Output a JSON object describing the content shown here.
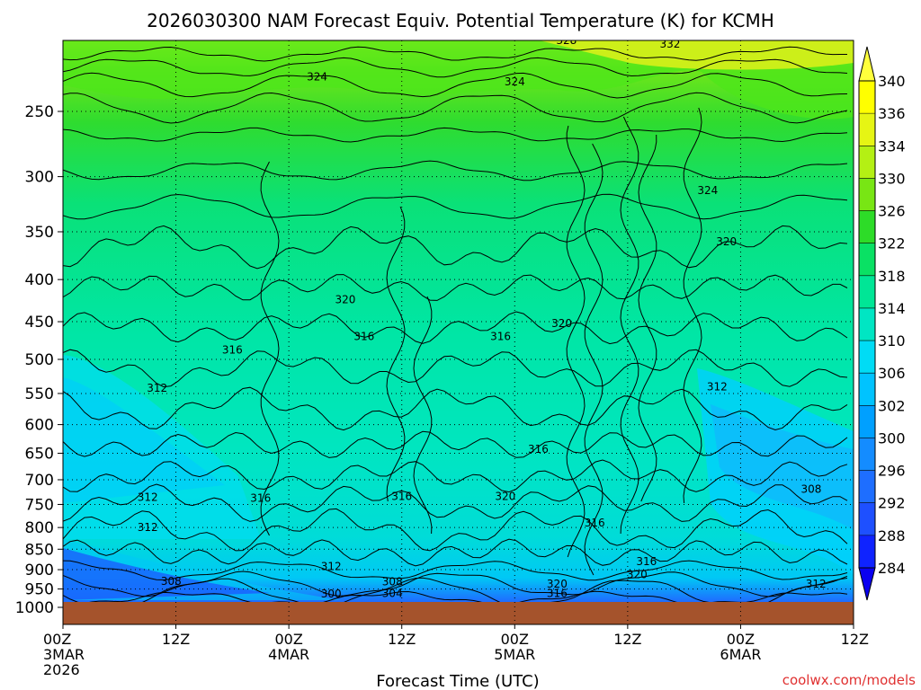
{
  "chart_data": {
    "type": "heatmap",
    "title": "2026030300 NAM Forecast Equiv. Potential Temperature (K) for KCMH",
    "xlabel": "Forecast Time (UTC)",
    "ylabel": "",
    "y_axis": {
      "scale": "log",
      "range": [
        1000,
        200
      ],
      "ticks": [
        250,
        300,
        350,
        400,
        450,
        500,
        550,
        600,
        650,
        700,
        750,
        800,
        850,
        900,
        950,
        1000
      ]
    },
    "x_axis": {
      "range_hours": [
        0,
        84
      ],
      "ticks": [
        {
          "hour": 0,
          "lines": [
            "00Z",
            "3MAR",
            "2026"
          ]
        },
        {
          "hour": 12,
          "lines": [
            "12Z"
          ]
        },
        {
          "hour": 24,
          "lines": [
            "00Z",
            "4MAR"
          ]
        },
        {
          "hour": 36,
          "lines": [
            "12Z"
          ]
        },
        {
          "hour": 48,
          "lines": [
            "00Z",
            "5MAR"
          ]
        },
        {
          "hour": 60,
          "lines": [
            "12Z"
          ]
        },
        {
          "hour": 72,
          "lines": [
            "00Z",
            "6MAR"
          ]
        },
        {
          "hour": 84,
          "lines": [
            "12Z"
          ]
        }
      ]
    },
    "colorbar": {
      "values": [
        284,
        288,
        292,
        296,
        300,
        302,
        306,
        310,
        314,
        318,
        322,
        326,
        330,
        334,
        336,
        340
      ],
      "colors": [
        "#0a00f0",
        "#0f23ff",
        "#1e50ff",
        "#1e6eff",
        "#148cff",
        "#00a0ff",
        "#00c3ff",
        "#00dcf5",
        "#00e6c3",
        "#00e696",
        "#0ae164",
        "#2ddc28",
        "#78e614",
        "#b4f014",
        "#e6f514",
        "#ffff00"
      ]
    },
    "contour_labels": [
      {
        "text": "328",
        "hour": 53.5,
        "p": 205
      },
      {
        "text": "332",
        "hour": 64.5,
        "p": 207
      },
      {
        "text": "324",
        "hour": 27.0,
        "p": 227
      },
      {
        "text": "324",
        "hour": 48.0,
        "p": 230
      },
      {
        "text": "324",
        "hour": 68.5,
        "p": 312
      },
      {
        "text": "320",
        "hour": 70.5,
        "p": 360
      },
      {
        "text": "320",
        "hour": 30.0,
        "p": 423
      },
      {
        "text": "320",
        "hour": 53.0,
        "p": 452
      },
      {
        "text": "316",
        "hour": 18.0,
        "p": 487
      },
      {
        "text": "316",
        "hour": 32.0,
        "p": 469
      },
      {
        "text": "316",
        "hour": 46.5,
        "p": 469
      },
      {
        "text": "312",
        "hour": 10.0,
        "p": 542
      },
      {
        "text": "312",
        "hour": 69.5,
        "p": 540
      },
      {
        "text": "316",
        "hour": 50.5,
        "p": 643
      },
      {
        "text": "312",
        "hour": 9.0,
        "p": 735
      },
      {
        "text": "316",
        "hour": 21.0,
        "p": 737
      },
      {
        "text": "316",
        "hour": 36.0,
        "p": 733
      },
      {
        "text": "320",
        "hour": 47.0,
        "p": 733
      },
      {
        "text": "308",
        "hour": 79.5,
        "p": 719
      },
      {
        "text": "316",
        "hour": 56.5,
        "p": 790
      },
      {
        "text": "312",
        "hour": 9.0,
        "p": 800
      },
      {
        "text": "312",
        "hour": 28.5,
        "p": 892
      },
      {
        "text": "316",
        "hour": 62.0,
        "p": 880
      },
      {
        "text": "320",
        "hour": 61.0,
        "p": 912
      },
      {
        "text": "308",
        "hour": 11.5,
        "p": 930
      },
      {
        "text": "308",
        "hour": 35.0,
        "p": 931
      },
      {
        "text": "320",
        "hour": 52.5,
        "p": 937
      },
      {
        "text": "312",
        "hour": 80.0,
        "p": 937
      },
      {
        "text": "300",
        "hour": 28.5,
        "p": 963
      },
      {
        "text": "304",
        "hour": 35.0,
        "p": 962
      },
      {
        "text": "316",
        "hour": 52.5,
        "p": 962
      }
    ]
  },
  "watermark": "coolwx.com/models"
}
